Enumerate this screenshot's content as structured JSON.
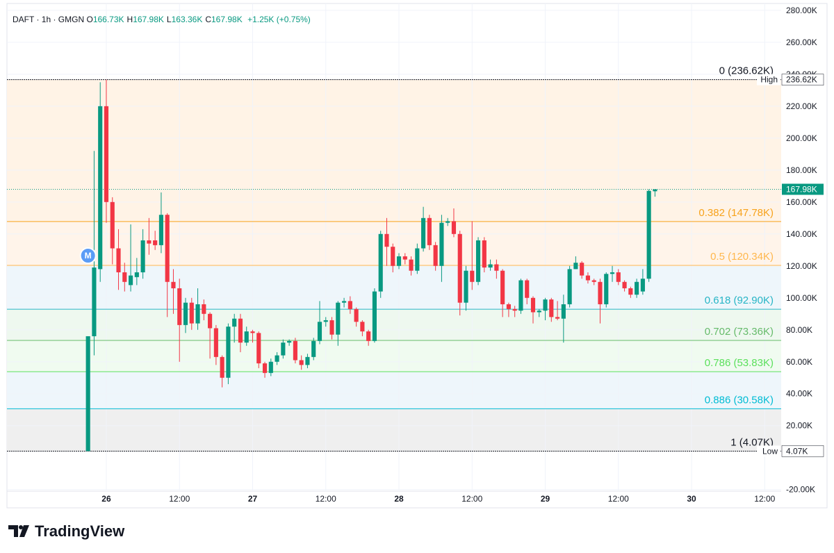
{
  "header": {
    "symbol": "DAFT · 1h · GMGN",
    "ohlc": [
      {
        "label": "O",
        "value": "166.73K"
      },
      {
        "label": "H",
        "value": "167.98K"
      },
      {
        "label": "L",
        "value": "163.36K"
      },
      {
        "label": "C",
        "value": "167.98K"
      }
    ],
    "change": "+1.25K (+0.75%)"
  },
  "chart_data": {
    "type": "candlestick",
    "up_color": "#089981",
    "down_color": "#f23645",
    "grid": true,
    "x": [
      -3,
      -2,
      -1,
      0,
      1,
      2,
      3,
      4,
      5,
      6,
      7,
      8,
      9,
      10,
      11,
      12,
      13,
      14,
      15,
      16,
      17,
      18,
      19,
      20,
      21,
      22,
      23,
      24,
      25,
      26,
      27,
      28,
      29,
      30,
      31,
      32,
      33,
      34,
      35,
      36,
      37,
      38,
      39,
      40,
      41,
      42,
      43,
      44,
      45,
      46,
      47,
      48,
      49,
      50,
      51,
      52,
      53,
      54,
      55,
      56,
      57,
      58,
      59,
      60,
      61,
      62,
      63,
      64,
      65,
      66,
      67,
      68,
      69,
      70,
      71,
      72,
      73,
      74,
      75,
      76,
      77,
      78,
      79,
      80,
      81,
      82,
      83,
      84,
      85,
      86,
      87,
      88,
      89,
      90
    ],
    "open": [
      4.07,
      76,
      118,
      220,
      160,
      131,
      116,
      108,
      113,
      116,
      136,
      136,
      133,
      152,
      110,
      106,
      83,
      97,
      84,
      96,
      90,
      81,
      63,
      50,
      82,
      87,
      72,
      79,
      78,
      59,
      53,
      60,
      64,
      72,
      73,
      61,
      58,
      63,
      73,
      85,
      86,
      77,
      97,
      98,
      93,
      85,
      79,
      73,
      104,
      140,
      132,
      120,
      126,
      124,
      117,
      131,
      150,
      133,
      120,
      147,
      148,
      140,
      97,
      117,
      110,
      136,
      119,
      121,
      117,
      96,
      93,
      92,
      111,
      100,
      91,
      92,
      99,
      88,
      87,
      96,
      118,
      122,
      114,
      111,
      110,
      96,
      115,
      116,
      110,
      106,
      102,
      104,
      112,
      166.73
    ],
    "high": [
      76,
      192,
      235,
      236.62,
      163,
      143,
      122,
      146,
      125,
      143,
      150,
      142,
      166,
      153,
      118,
      112,
      100,
      100,
      106,
      99,
      91,
      83,
      64,
      84,
      90,
      90,
      82,
      80,
      79,
      60,
      62,
      66,
      74,
      74,
      75,
      64,
      65,
      75,
      98,
      88,
      88,
      98,
      100,
      101,
      94,
      86,
      80,
      106,
      142,
      150,
      134,
      128,
      128,
      126,
      134,
      157,
      152,
      135,
      152,
      150,
      156,
      142,
      120,
      148,
      138,
      138,
      124,
      124,
      118,
      97,
      95,
      112,
      112,
      101,
      93,
      100,
      100,
      98,
      102,
      120,
      126,
      123,
      116,
      112,
      112,
      116,
      120,
      118,
      111,
      107,
      112,
      118,
      168,
      167.98
    ],
    "low": [
      4.07,
      64,
      110,
      147,
      121,
      105,
      104,
      104,
      108,
      112,
      127,
      130,
      128,
      88,
      90,
      60,
      78,
      80,
      80,
      86,
      62,
      58,
      44,
      46,
      72,
      66,
      70,
      72,
      56,
      50,
      51,
      58,
      62,
      70,
      59,
      55,
      56,
      61,
      71,
      82,
      74,
      70,
      94,
      90,
      82,
      76,
      70,
      72,
      100,
      120,
      116,
      118,
      121,
      114,
      115,
      129,
      130,
      117,
      110,
      145,
      138,
      89,
      92,
      105,
      108,
      116,
      117,
      112,
      88,
      88,
      88,
      90,
      96,
      84,
      88,
      86,
      85,
      86,
      72,
      94,
      118,
      112,
      109,
      108,
      84,
      94,
      110,
      108,
      104,
      100,
      100,
      102,
      110,
      163.36
    ],
    "close": [
      76,
      119,
      220,
      160,
      131,
      116,
      110,
      114,
      116,
      136,
      134,
      133,
      152,
      110,
      106,
      83,
      97,
      84,
      96,
      90,
      81,
      63,
      50,
      82,
      87,
      72,
      79,
      78,
      59,
      53,
      60,
      64,
      72,
      73,
      61,
      58,
      63,
      73,
      85,
      86,
      77,
      97,
      98,
      93,
      85,
      79,
      73,
      104,
      140,
      132,
      120,
      126,
      124,
      117,
      131,
      150,
      133,
      120,
      147,
      148,
      140,
      97,
      117,
      110,
      136,
      119,
      121,
      117,
      96,
      93,
      92,
      111,
      100,
      91,
      92,
      99,
      88,
      87,
      96,
      118,
      122,
      114,
      111,
      110,
      96,
      115,
      116,
      110,
      106,
      102,
      110,
      112,
      167,
      167.98
    ],
    "xlim": [
      -16.3,
      110.7
    ],
    "xticks": [
      {
        "value": 0,
        "label": "26"
      },
      {
        "value": 12,
        "label": "12:00"
      },
      {
        "value": 24,
        "label": "27"
      },
      {
        "value": 36,
        "label": "12:00"
      },
      {
        "value": 48,
        "label": "28"
      },
      {
        "value": 60,
        "label": "12:00"
      },
      {
        "value": 72,
        "label": "29"
      },
      {
        "value": 84,
        "label": "12:00"
      },
      {
        "value": 96,
        "label": "30"
      },
      {
        "value": 108,
        "label": "12:00"
      }
    ],
    "ylim": [
      -21,
      284.3
    ],
    "yticks": [
      {
        "value": 280,
        "label": "280.00K"
      },
      {
        "value": 260,
        "label": "260.00K"
      },
      {
        "value": 240,
        "label": "240.00K"
      },
      {
        "value": 220,
        "label": "220.00K"
      },
      {
        "value": 200,
        "label": "200.00K"
      },
      {
        "value": 180,
        "label": "180.00K"
      },
      {
        "value": 160,
        "label": "160.00K"
      },
      {
        "value": 140,
        "label": "140.00K"
      },
      {
        "value": 120,
        "label": "120.00K"
      },
      {
        "value": 100,
        "label": "100.00K"
      },
      {
        "value": 80,
        "label": "80.00K"
      },
      {
        "value": 60,
        "label": "60.00K"
      },
      {
        "value": 40,
        "label": "40.00K"
      },
      {
        "value": 20,
        "label": "20.00K"
      },
      {
        "value": -20,
        "label": "-20.00K"
      }
    ],
    "fib_levels": [
      {
        "label": "0 (236.62K)",
        "value": 236.62,
        "color": "#131722",
        "fill": "#fff3e6"
      },
      {
        "label": "0.382 (147.78K)",
        "value": 147.78,
        "color": "#f7a21b",
        "fill": "#fff4ea"
      },
      {
        "label": "0.5 (120.34K)",
        "value": 120.34,
        "color": "#ffb74d",
        "fill": "#eef6fb"
      },
      {
        "label": "0.618 (92.90K)",
        "value": 92.9,
        "color": "#26b5c6",
        "fill": "#eef8ef"
      },
      {
        "label": "0.702 (73.36K)",
        "value": 73.36,
        "color": "#66bb6a",
        "fill": "#f0fbf0"
      },
      {
        "label": "0.786 (53.83K)",
        "value": 53.83,
        "color": "#5be05b",
        "fill": "#eef6fb"
      },
      {
        "label": "0.886 (30.58K)",
        "value": 30.58,
        "color": "#00bcd4",
        "fill": "#efefef"
      },
      {
        "label": "1 (4.07K)",
        "value": 4.07,
        "color": "#131722"
      }
    ],
    "price_labels": [
      {
        "name": "High",
        "value": 236.62,
        "label": "236.62K"
      },
      {
        "value": 167.98,
        "label": "167.98K",
        "color": "#089981"
      },
      {
        "name": "Low",
        "value": 4.07,
        "label": "4.07K"
      }
    ],
    "marker": {
      "label": "M",
      "x": -3
    }
  },
  "footer": {
    "brand": "TradingView"
  }
}
